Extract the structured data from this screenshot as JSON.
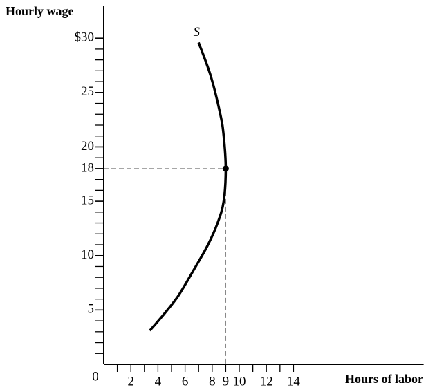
{
  "chart_data": {
    "type": "line",
    "y_axis_label": "Hourly wage",
    "x_axis_label": "Hours of labor",
    "origin_label": "0",
    "series": [
      {
        "name": "S",
        "color": "#000000",
        "x": [
          3.4,
          4.5,
          5.5,
          6.6,
          7.65,
          8.4,
          8.85,
          9,
          8.85,
          8.6,
          7.9,
          7.0
        ],
        "values": [
          3.1,
          4.7,
          6.3,
          8.6,
          10.9,
          13,
          15,
          18,
          21,
          23,
          26.5,
          29.6
        ]
      }
    ],
    "point": {
      "x": 9,
      "y": 18
    },
    "xlim": [
      0,
      23.6
    ],
    "ylim": [
      0,
      33
    ],
    "xticks": [
      2,
      4,
      6,
      8,
      9,
      10,
      12,
      14
    ],
    "x_minor_ticks": [
      1,
      2,
      3,
      4,
      5,
      6,
      7,
      8,
      9,
      10,
      11,
      12,
      13,
      14
    ],
    "yticks": [
      {
        "value": 30,
        "label": "$30"
      },
      25,
      20,
      18,
      15,
      10,
      5
    ],
    "y_minor_ticks": [
      1,
      2,
      3,
      4,
      5,
      6,
      7,
      8,
      9,
      10,
      11,
      12,
      13,
      14,
      15,
      16,
      17,
      18,
      19,
      20,
      21,
      22,
      23,
      24,
      25,
      26,
      27,
      28,
      29,
      30
    ]
  }
}
